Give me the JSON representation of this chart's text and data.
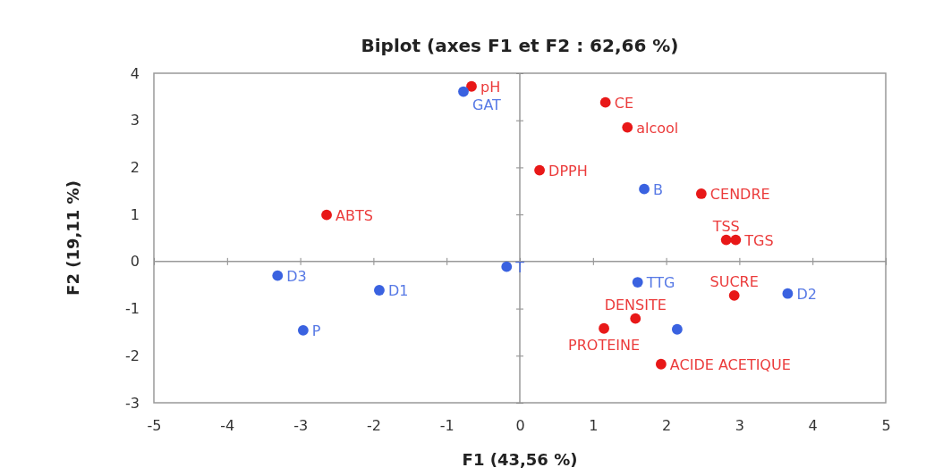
{
  "chart_data": {
    "type": "scatter",
    "title": "Biplot (axes F1 et F2 : 62,66 %)",
    "xlabel": "F1 (43,56 %)",
    "ylabel": "F2 (19,11 %)",
    "xlim": [
      -5,
      5
    ],
    "xticks": [
      -5,
      -4,
      -3,
      -2,
      -1,
      0,
      1,
      2,
      3,
      4,
      5
    ],
    "ylim": [
      -3,
      4
    ],
    "yticks": [
      -3,
      -2,
      -1,
      0,
      1,
      2,
      3,
      4
    ],
    "grid": false,
    "marker": "circle",
    "ref_lines": [
      {
        "axis": "x",
        "value": 0
      },
      {
        "axis": "y",
        "value": 0
      }
    ],
    "series": [
      {
        "color": "#e81818",
        "x": [
          -0.66,
          1.17,
          1.47,
          0.27,
          2.48,
          2.82,
          2.95,
          -2.64,
          2.93,
          1.58,
          1.15,
          1.93
        ],
        "values": [
          3.72,
          3.38,
          2.85,
          1.94,
          1.44,
          0.46,
          0.46,
          0.99,
          -0.72,
          -1.21,
          -1.42,
          -2.18
        ]
      },
      {
        "color": "#3a62e0",
        "x": [
          -0.77,
          1.7,
          -0.18,
          -3.31,
          -1.92,
          -2.96,
          1.61,
          3.66,
          2.15
        ],
        "values": [
          3.61,
          1.54,
          -0.11,
          -0.3,
          -0.61,
          -1.46,
          -0.44,
          -0.68,
          -1.44
        ]
      }
    ],
    "annotations": [
      {
        "text": "pH",
        "x": -0.66,
        "y": 3.72
      },
      {
        "text": "CE",
        "x": 1.17,
        "y": 3.38
      },
      {
        "text": "alcool",
        "x": 1.47,
        "y": 2.85
      },
      {
        "text": "DPPH",
        "x": 0.27,
        "y": 1.94
      },
      {
        "text": "CENDRE",
        "x": 2.48,
        "y": 1.44
      },
      {
        "text": "TSS",
        "x": 2.82,
        "y": 0.46
      },
      {
        "text": "TGS",
        "x": 2.95,
        "y": 0.46
      },
      {
        "text": "ABTS",
        "x": -2.64,
        "y": 0.99
      },
      {
        "text": "SUCRE",
        "x": 2.93,
        "y": -0.72
      },
      {
        "text": "DENSITE",
        "x": 1.58,
        "y": -1.21
      },
      {
        "text": "PROTEINE",
        "x": 1.15,
        "y": -1.42
      },
      {
        "text": "ACIDE ACETIQUE",
        "x": 1.93,
        "y": -2.18
      },
      {
        "text": "GAT",
        "x": -0.77,
        "y": 3.61
      },
      {
        "text": "B",
        "x": 1.7,
        "y": 1.54
      },
      {
        "text": "T",
        "x": -0.18,
        "y": -0.11
      },
      {
        "text": "D3",
        "x": -3.31,
        "y": -0.3
      },
      {
        "text": "D1",
        "x": -1.92,
        "y": -0.61
      },
      {
        "text": "P",
        "x": -2.96,
        "y": -1.46
      },
      {
        "text": "TTG",
        "x": 1.61,
        "y": -0.44
      },
      {
        "text": "D2",
        "x": 3.66,
        "y": -0.68
      }
    ]
  }
}
